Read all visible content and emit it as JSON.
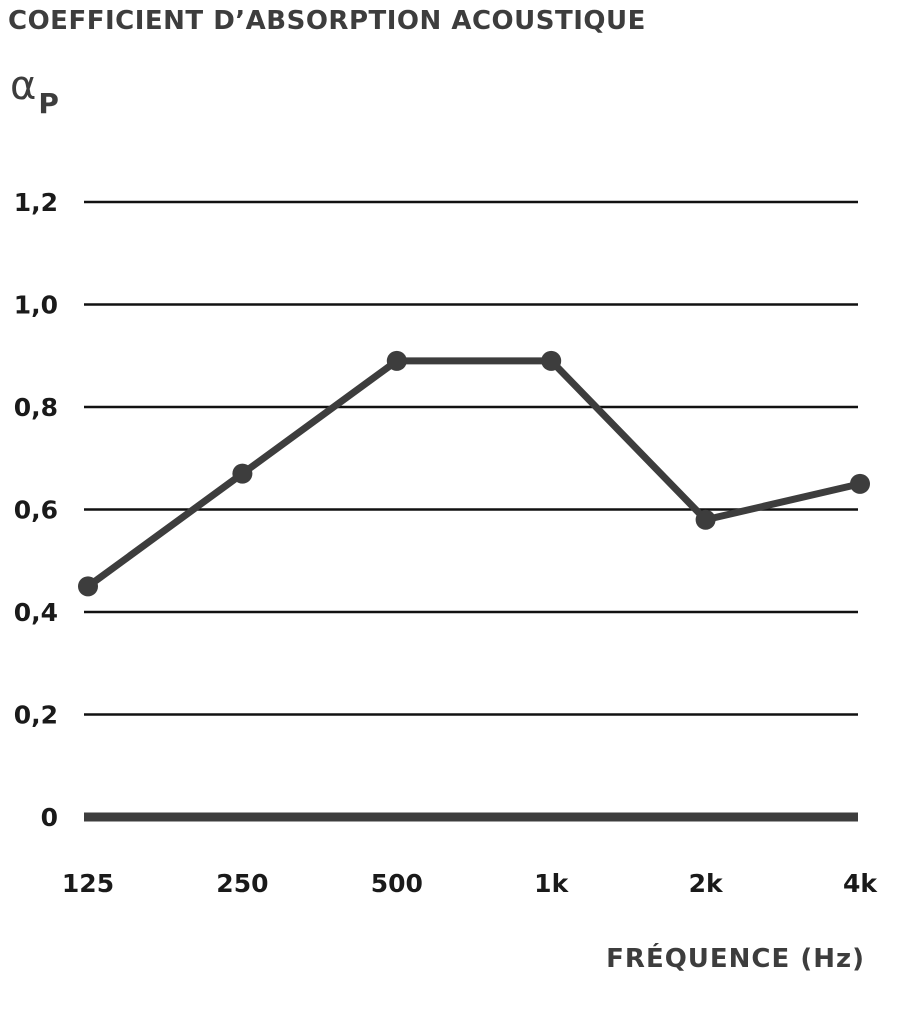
{
  "chart_data": {
    "type": "line",
    "title": "COEFFICIENT D’ABSORPTION ACOUSTIQUE",
    "ylabel_symbol": "α",
    "ylabel_subscript": "P",
    "xlabel": "FRÉQUENCE (Hz)",
    "categories": [
      "125",
      "250",
      "500",
      "1k",
      "2k",
      "4k"
    ],
    "series": [
      {
        "values": [
          0.45,
          0.67,
          0.89,
          0.89,
          0.58,
          0.65
        ]
      }
    ],
    "ylim": [
      0,
      1.2
    ],
    "yticks": [
      0,
      0.2,
      0.4,
      0.6,
      0.8,
      1.0,
      1.2
    ],
    "ytick_labels": [
      "0",
      "0,2",
      "0,4",
      "0,6",
      "0,8",
      "1,0",
      "1,2"
    ],
    "grid": true,
    "legend": "none",
    "colors": {
      "line": "#3d3d3d",
      "grid": "#111111",
      "baseline": "#3d3d3d",
      "text": "#3d3d3d"
    }
  }
}
